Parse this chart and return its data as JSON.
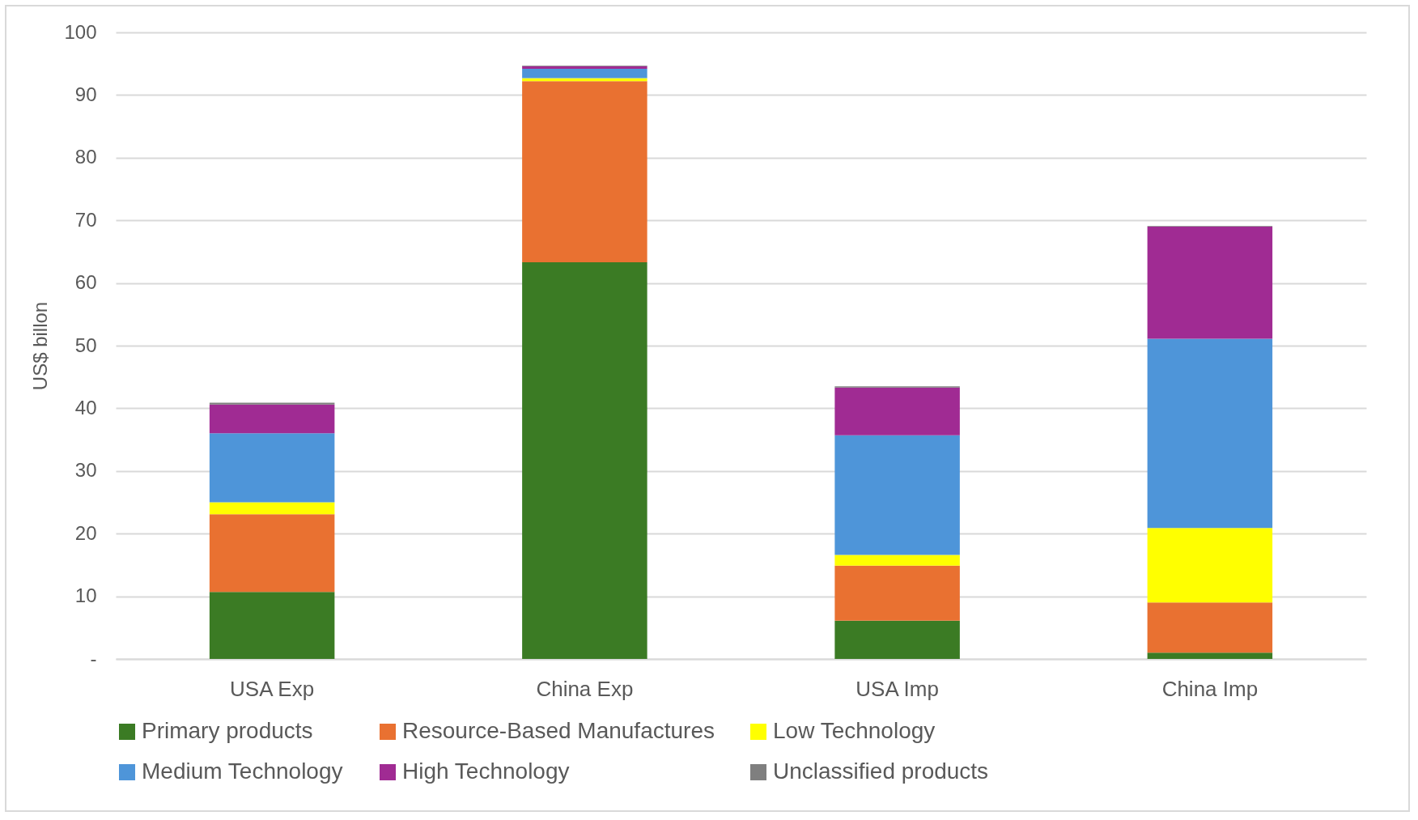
{
  "chart_data": {
    "type": "bar",
    "stacked": true,
    "ylabel": "US$ billon",
    "categories": [
      "USA Exp",
      "China Exp",
      "USA Imp",
      "China Imp"
    ],
    "series": [
      {
        "name": "Primary products",
        "color": "#3b7b24",
        "values": [
          10.7,
          63.3,
          6.1,
          1.0
        ]
      },
      {
        "name": "Resource-Based Manufactures",
        "color": "#e97131",
        "values": [
          12.4,
          28.9,
          8.8,
          8.0
        ]
      },
      {
        "name": "Low Technology",
        "color": "#ffff00",
        "values": [
          1.9,
          0.5,
          1.7,
          11.9
        ]
      },
      {
        "name": "Medium Technology",
        "color": "#4e95d9",
        "values": [
          11.0,
          1.5,
          19.1,
          30.2
        ]
      },
      {
        "name": "High Technology",
        "color": "#a02b93",
        "values": [
          4.6,
          0.4,
          7.6,
          17.9
        ]
      },
      {
        "name": "Unclassified products",
        "color": "#7f7f7f",
        "values": [
          0.3,
          0.1,
          0.2,
          0.1
        ]
      }
    ],
    "ylim": [
      0,
      100
    ],
    "yticks": [
      {
        "value": 0,
        "label": "-"
      },
      10,
      20,
      30,
      40,
      50,
      60,
      70,
      80,
      90,
      100
    ],
    "grid": "y",
    "legend": "bottom"
  }
}
